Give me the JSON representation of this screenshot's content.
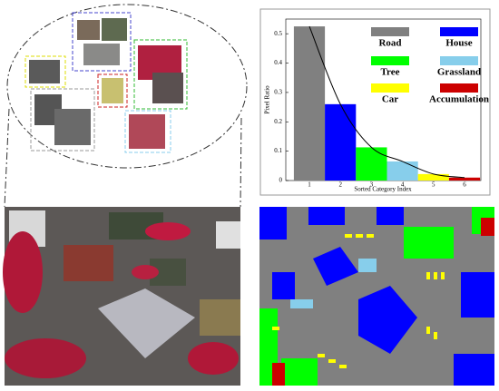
{
  "chart_data": {
    "type": "bar",
    "categories": [
      "1",
      "2",
      "3",
      "4",
      "5",
      "6"
    ],
    "values": [
      0.525,
      0.26,
      0.113,
      0.065,
      0.022,
      0.01
    ],
    "colors": [
      "#808080",
      "#0000ff",
      "#00ff00",
      "#87ceeb",
      "#ffff00",
      "#cc0000"
    ],
    "legend": [
      "Road",
      "House",
      "Tree",
      "Grassland",
      "Car",
      "Accumulation"
    ],
    "xlabel": "Sorted Category Index",
    "ylabel": "Pixel Ratio",
    "ylim": [
      0,
      0.55
    ],
    "yticks": [
      0,
      0.1,
      0.2,
      0.3,
      0.4,
      0.5
    ],
    "trend_line": true
  }
}
